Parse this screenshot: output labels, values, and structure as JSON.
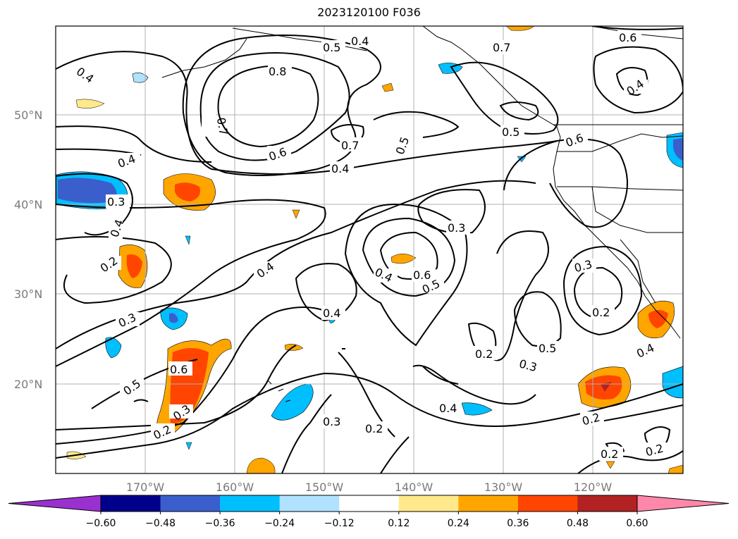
{
  "title": "2023120100 F036",
  "axes": {
    "lat_labels": [
      "50°N",
      "40°N",
      "30°N",
      "20°N"
    ],
    "lon_labels": [
      "170°W",
      "160°W",
      "150°W",
      "140°W",
      "130°W",
      "120°W"
    ]
  },
  "contour_labels": {
    "a": "0.4",
    "b": "0.5",
    "c": "0.8",
    "d": "0.7",
    "e": "0.6",
    "f": "0.4",
    "g": "0.4",
    "h": "0.7",
    "i": "0.5",
    "j": "0.7",
    "k": "0.6",
    "l": "0.4",
    "m": "0.4",
    "n": "0.6",
    "o": "0.4",
    "p": "0.3",
    "q": "0.4",
    "r": "0.5",
    "s": "0.3",
    "t": "0.2",
    "u": "0.4",
    "v": "0.4",
    "w": "0.6",
    "x": "0.5",
    "y": "0.3",
    "z": "0.2",
    "aa": "0.3",
    "ab": "0.2",
    "ac": "0.5",
    "ad": "0.3",
    "ae": "0.2",
    "af": "0.4",
    "ag": "0.5",
    "ah": "0.6",
    "ai": "0.3",
    "aj": "0.2",
    "ak": "0.3",
    "al": "0.2",
    "am": "0.4",
    "an": "0.2",
    "ao": "0.2"
  },
  "colorbar": {
    "ticks": [
      "−0.60",
      "−0.48",
      "−0.36",
      "−0.24",
      "−0.12",
      "0.12",
      "0.24",
      "0.36",
      "0.48",
      "0.60"
    ],
    "colors": [
      "#9b30d0",
      "#00008b",
      "#3a5fcd",
      "#00bfff",
      "#b0e2ff",
      "#ffffff",
      "#ffe98a",
      "#ffa500",
      "#ff4500",
      "#b22222",
      "#ff88aa"
    ]
  },
  "shading_colors": {
    "pos1": "#ffe98a",
    "pos2": "#ffa500",
    "pos3": "#ff4500",
    "pos4": "#b22222",
    "neg1": "#b0e2ff",
    "neg2": "#00bfff",
    "neg3": "#3a5fcd",
    "neg4": "#00008b"
  }
}
